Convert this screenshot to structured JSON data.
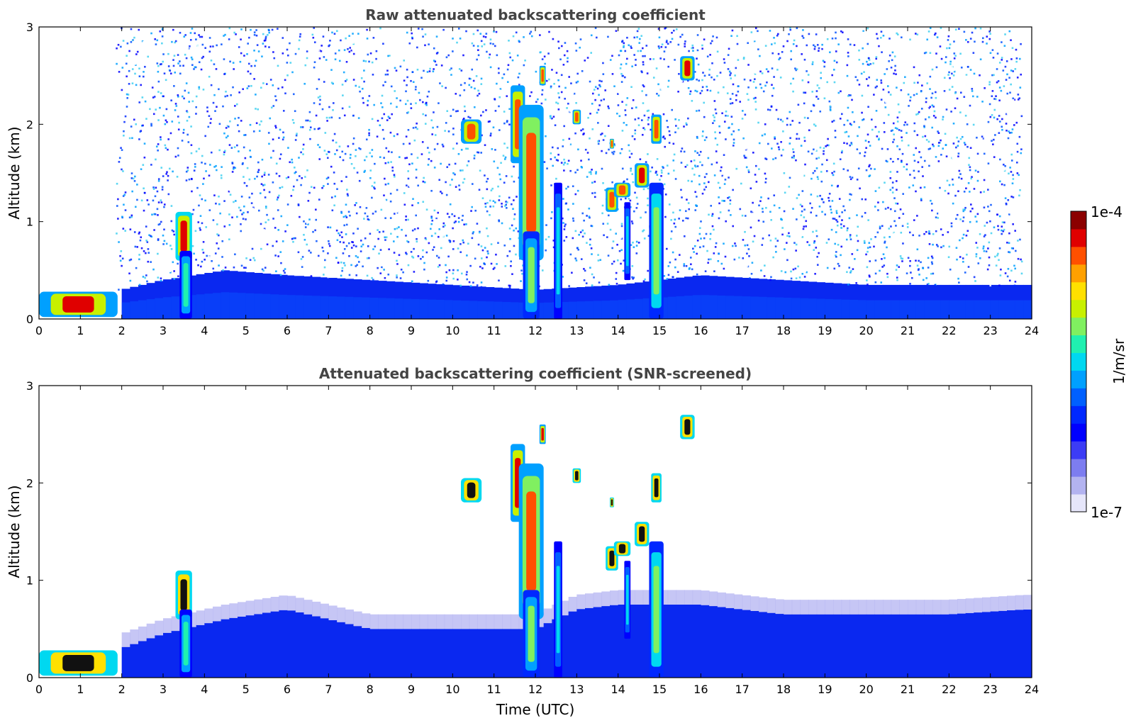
{
  "chart_data": [
    {
      "type": "heatmap",
      "title": "Raw attenuated backscattering coefficient",
      "xlabel": "",
      "ylabel": "Altitude (km)",
      "xlim": [
        0,
        24
      ],
      "ylim": [
        0,
        3
      ],
      "x_ticks": [
        "0",
        "1",
        "2",
        "3",
        "4",
        "5",
        "6",
        "7",
        "8",
        "9",
        "10",
        "11",
        "12",
        "13",
        "14",
        "15",
        "16",
        "17",
        "18",
        "19",
        "20",
        "21",
        "22",
        "23",
        "24"
      ],
      "y_ticks": [
        "0",
        "1",
        "2",
        "3"
      ],
      "noise": "high",
      "boundary_layer": [
        [
          0,
          0.3
        ],
        [
          2,
          0.3
        ],
        [
          3,
          0.4
        ],
        [
          4.5,
          0.5
        ],
        [
          6,
          0.45
        ],
        [
          8,
          0.4
        ],
        [
          10,
          0.35
        ],
        [
          12,
          0.3
        ],
        [
          14,
          0.35
        ],
        [
          16,
          0.45
        ],
        [
          18,
          0.4
        ],
        [
          20,
          0.35
        ],
        [
          22,
          0.35
        ],
        [
          23.8,
          0.35
        ]
      ],
      "features": [
        {
          "t0": 0.0,
          "t1": 1.9,
          "z0": 0.02,
          "z1": 0.28,
          "intensity": 0.93
        },
        {
          "t0": 3.3,
          "t1": 3.7,
          "z0": 0.6,
          "z1": 1.1,
          "intensity": 0.95
        },
        {
          "t0": 3.4,
          "t1": 3.7,
          "z0": 0.0,
          "z1": 0.7,
          "intensity": 0.55
        },
        {
          "t0": 10.2,
          "t1": 10.7,
          "z0": 1.8,
          "z1": 2.05,
          "intensity": 0.9
        },
        {
          "t0": 11.4,
          "t1": 11.75,
          "z0": 1.6,
          "z1": 2.4,
          "intensity": 0.9
        },
        {
          "t0": 11.6,
          "t1": 12.2,
          "z0": 0.6,
          "z1": 2.2,
          "intensity": 0.85
        },
        {
          "t0": 11.7,
          "t1": 12.1,
          "z0": 0.0,
          "z1": 0.9,
          "intensity": 0.6
        },
        {
          "t0": 12.1,
          "t1": 12.25,
          "z0": 2.4,
          "z1": 2.6,
          "intensity": 0.9
        },
        {
          "t0": 12.45,
          "t1": 12.65,
          "z0": 0.0,
          "z1": 1.4,
          "intensity": 0.5
        },
        {
          "t0": 12.9,
          "t1": 13.1,
          "z0": 2.0,
          "z1": 2.15,
          "intensity": 0.9
        },
        {
          "t0": 13.7,
          "t1": 14.0,
          "z0": 1.1,
          "z1": 1.35,
          "intensity": 0.9
        },
        {
          "t0": 13.9,
          "t1": 14.3,
          "z0": 1.25,
          "z1": 1.4,
          "intensity": 0.9
        },
        {
          "t0": 14.4,
          "t1": 14.75,
          "z0": 1.35,
          "z1": 1.6,
          "intensity": 0.92
        },
        {
          "t0": 14.15,
          "t1": 14.3,
          "z0": 0.4,
          "z1": 1.2,
          "intensity": 0.5
        },
        {
          "t0": 14.75,
          "t1": 15.1,
          "z0": 0.0,
          "z1": 1.4,
          "intensity": 0.65
        },
        {
          "t0": 14.8,
          "t1": 15.05,
          "z0": 1.8,
          "z1": 2.1,
          "intensity": 0.9
        },
        {
          "t0": 15.5,
          "t1": 15.85,
          "z0": 2.45,
          "z1": 2.7,
          "intensity": 0.93
        },
        {
          "t0": 13.8,
          "t1": 13.9,
          "z0": 1.75,
          "z1": 1.85,
          "intensity": 0.9
        }
      ]
    },
    {
      "type": "heatmap",
      "title": "Attenuated backscattering coefficient (SNR-screened)",
      "xlabel": "Time (UTC)",
      "ylabel": "Altitude (km)",
      "xlim": [
        0,
        24
      ],
      "ylim": [
        0,
        3
      ],
      "x_ticks": [
        "0",
        "1",
        "2",
        "3",
        "4",
        "5",
        "6",
        "7",
        "8",
        "9",
        "10",
        "11",
        "12",
        "13",
        "14",
        "15",
        "16",
        "17",
        "18",
        "19",
        "20",
        "21",
        "22",
        "23",
        "24"
      ],
      "y_ticks": [
        "0",
        "1",
        "2",
        "3"
      ],
      "noise": "screened",
      "boundary_layer": [
        [
          0,
          0.3
        ],
        [
          2,
          0.3
        ],
        [
          3,
          0.45
        ],
        [
          4.5,
          0.6
        ],
        [
          6,
          0.7
        ],
        [
          8,
          0.5
        ],
        [
          10,
          0.5
        ],
        [
          12,
          0.5
        ],
        [
          13,
          0.7
        ],
        [
          14,
          0.75
        ],
        [
          16,
          0.75
        ],
        [
          18,
          0.65
        ],
        [
          20,
          0.65
        ],
        [
          22,
          0.65
        ],
        [
          23.8,
          0.7
        ]
      ],
      "features": [
        {
          "t0": 0.0,
          "t1": 1.9,
          "z0": 0.02,
          "z1": 0.28,
          "intensity": 1.0
        },
        {
          "t0": 3.3,
          "t1": 3.7,
          "z0": 0.6,
          "z1": 1.1,
          "intensity": 1.0
        },
        {
          "t0": 3.4,
          "t1": 3.7,
          "z0": 0.0,
          "z1": 0.7,
          "intensity": 0.55
        },
        {
          "t0": 10.2,
          "t1": 10.7,
          "z0": 1.8,
          "z1": 2.05,
          "intensity": 1.0
        },
        {
          "t0": 11.4,
          "t1": 11.75,
          "z0": 1.6,
          "z1": 2.4,
          "intensity": 0.92
        },
        {
          "t0": 11.6,
          "t1": 12.2,
          "z0": 0.6,
          "z1": 2.2,
          "intensity": 0.85
        },
        {
          "t0": 11.7,
          "t1": 12.1,
          "z0": 0.0,
          "z1": 0.9,
          "intensity": 0.6
        },
        {
          "t0": 12.1,
          "t1": 12.25,
          "z0": 2.4,
          "z1": 2.6,
          "intensity": 0.92
        },
        {
          "t0": 12.45,
          "t1": 12.65,
          "z0": 0.0,
          "z1": 1.4,
          "intensity": 0.5
        },
        {
          "t0": 12.9,
          "t1": 13.1,
          "z0": 2.0,
          "z1": 2.15,
          "intensity": 1.0
        },
        {
          "t0": 13.7,
          "t1": 14.0,
          "z0": 1.1,
          "z1": 1.35,
          "intensity": 1.0
        },
        {
          "t0": 13.9,
          "t1": 14.3,
          "z0": 1.25,
          "z1": 1.4,
          "intensity": 1.0
        },
        {
          "t0": 14.4,
          "t1": 14.75,
          "z0": 1.35,
          "z1": 1.6,
          "intensity": 1.0
        },
        {
          "t0": 14.15,
          "t1": 14.3,
          "z0": 0.4,
          "z1": 1.2,
          "intensity": 0.5
        },
        {
          "t0": 14.75,
          "t1": 15.1,
          "z0": 0.0,
          "z1": 1.4,
          "intensity": 0.65
        },
        {
          "t0": 14.8,
          "t1": 15.05,
          "z0": 1.8,
          "z1": 2.1,
          "intensity": 1.0
        },
        {
          "t0": 15.5,
          "t1": 15.85,
          "z0": 2.45,
          "z1": 2.7,
          "intensity": 1.0
        },
        {
          "t0": 13.8,
          "t1": 13.9,
          "z0": 1.75,
          "z1": 1.85,
          "intensity": 1.0
        }
      ]
    }
  ],
  "colorbar": {
    "label": "1/m/sr",
    "max_label": "1e-4",
    "min_label": "1e-7",
    "colors": [
      "#e6e6fa",
      "#b3b3f0",
      "#7d7df0",
      "#3c3cf5",
      "#0000ff",
      "#0028ff",
      "#0060ff",
      "#00a0ff",
      "#00d8f0",
      "#20f0b0",
      "#80f060",
      "#c8f000",
      "#ffe000",
      "#ffa000",
      "#ff5000",
      "#e00000",
      "#8b0000"
    ]
  }
}
